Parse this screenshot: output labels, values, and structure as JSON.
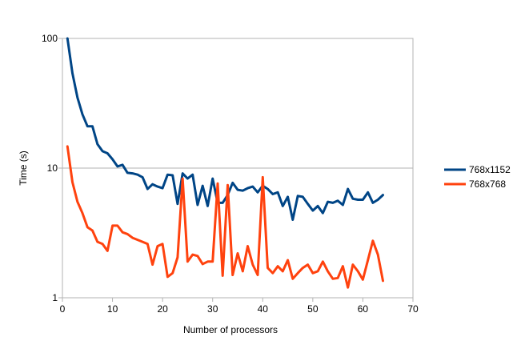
{
  "chart_data": {
    "type": "line",
    "title": "",
    "xlabel": "Number of processors",
    "ylabel": "Time (s)",
    "xlim": [
      0,
      70
    ],
    "ylim": [
      1,
      100
    ],
    "yscale": "log",
    "xticks": [
      0,
      10,
      20,
      30,
      40,
      50,
      60,
      70
    ],
    "yticks": [
      1,
      10,
      100
    ],
    "grid": "horizontal major gridlines",
    "legend_position": "right",
    "series": [
      {
        "name": "768x1152",
        "color": "#004586",
        "x": [
          1,
          2,
          3,
          4,
          5,
          6,
          7,
          8,
          9,
          10,
          11,
          12,
          13,
          14,
          15,
          16,
          17,
          18,
          19,
          20,
          21,
          22,
          23,
          24,
          25,
          26,
          27,
          28,
          29,
          30,
          31,
          32,
          33,
          34,
          35,
          36,
          37,
          38,
          39,
          40,
          41,
          42,
          43,
          44,
          45,
          46,
          47,
          48,
          49,
          50,
          51,
          52,
          53,
          54,
          55,
          56,
          57,
          58,
          59,
          60,
          61,
          62,
          63,
          64
        ],
        "values": [
          100,
          54,
          35,
          26,
          21,
          21,
          15.3,
          13.5,
          13,
          11.7,
          10.3,
          10.6,
          9.2,
          9.1,
          8.9,
          8.5,
          6.9,
          7.5,
          7.2,
          7,
          8.9,
          8.8,
          5.3,
          9.1,
          8.3,
          8.9,
          5.2,
          7.3,
          5.1,
          8.3,
          5.4,
          5.4,
          6.2,
          7.7,
          6.8,
          6.7,
          7,
          7.2,
          6.5,
          7.3,
          6.9,
          6.3,
          6.5,
          5.1,
          6,
          4,
          6.1,
          6,
          5.3,
          4.7,
          5.1,
          4.5,
          5.5,
          5.4,
          5.6,
          5.2,
          6.9,
          5.8,
          5.7,
          5.7,
          6.5,
          5.4,
          5.7,
          6.2
        ]
      },
      {
        "name": "768x768",
        "color": "#ff420e",
        "x": [
          1,
          2,
          3,
          4,
          5,
          6,
          7,
          8,
          9,
          10,
          11,
          12,
          13,
          14,
          15,
          16,
          17,
          18,
          19,
          20,
          21,
          22,
          23,
          24,
          25,
          26,
          27,
          28,
          29,
          30,
          31,
          32,
          33,
          34,
          35,
          36,
          37,
          38,
          39,
          40,
          41,
          42,
          43,
          44,
          45,
          46,
          47,
          48,
          49,
          50,
          51,
          52,
          53,
          54,
          55,
          56,
          57,
          58,
          59,
          60,
          61,
          62,
          63,
          64
        ],
        "values": [
          14.7,
          7.8,
          5.5,
          4.5,
          3.5,
          3.3,
          2.7,
          2.6,
          2.3,
          3.6,
          3.6,
          3.2,
          3.1,
          2.9,
          2.8,
          2.7,
          2.6,
          1.8,
          2.5,
          2.6,
          1.45,
          1.55,
          2.05,
          8.3,
          1.9,
          2.15,
          2.1,
          1.82,
          1.9,
          1.9,
          7.6,
          1.48,
          7.4,
          1.5,
          2.2,
          1.6,
          2.5,
          1.8,
          1.5,
          8.5,
          1.7,
          1.55,
          1.75,
          1.6,
          1.95,
          1.4,
          1.55,
          1.7,
          1.8,
          1.55,
          1.6,
          1.9,
          1.6,
          1.4,
          1.42,
          1.75,
          1.2,
          1.8,
          1.6,
          1.38,
          1.95,
          2.75,
          2.15,
          1.35
        ]
      }
    ]
  }
}
